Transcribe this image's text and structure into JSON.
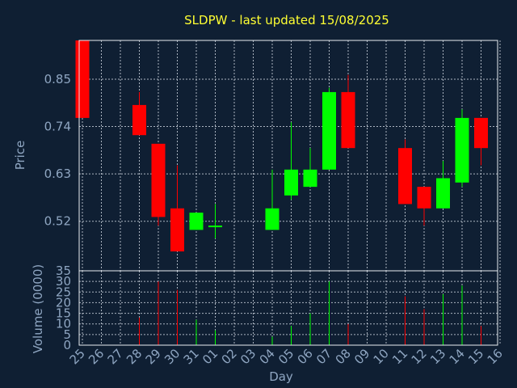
{
  "colors": {
    "background": "#0f1f33",
    "title": "#ffff33",
    "axis_text": "#8fa6c2",
    "up": "#00ff00",
    "down": "#ff0000",
    "grid": "#c8d0da"
  },
  "chart_data": [
    {
      "type": "candlestick",
      "title": "SLDPW - last updated 15/08/2025",
      "ylabel": "Price",
      "xlabel": "Day",
      "grid": true,
      "x_ticks": [
        "25",
        "26",
        "27",
        "28",
        "29",
        "30",
        "31",
        "01",
        "02",
        "03",
        "04",
        "05",
        "06",
        "07",
        "08",
        "09",
        "10",
        "11",
        "12",
        "13",
        "14",
        "15",
        "16"
      ],
      "y_ticks": [
        0.52,
        0.63,
        0.74,
        0.85
      ],
      "ylim": [
        0.405,
        0.94
      ],
      "xlim": [
        25,
        47
      ],
      "candles": [
        {
          "day": "25",
          "x": 25,
          "open": 0.94,
          "close": 0.76,
          "high": 0.94,
          "low": 0.76
        },
        {
          "day": "28",
          "x": 28,
          "open": 0.79,
          "close": 0.72,
          "high": 0.82,
          "low": 0.72
        },
        {
          "day": "29",
          "x": 29,
          "open": 0.7,
          "close": 0.53,
          "high": 0.7,
          "low": 0.51
        },
        {
          "day": "30",
          "x": 30,
          "open": 0.55,
          "close": 0.45,
          "high": 0.65,
          "low": 0.45
        },
        {
          "day": "31",
          "x": 31,
          "open": 0.5,
          "close": 0.54,
          "high": 0.54,
          "low": 0.5
        },
        {
          "day": "01",
          "x": 32,
          "open": 0.51,
          "close": 0.51,
          "high": 0.56,
          "low": 0.48
        },
        {
          "day": "04",
          "x": 35,
          "open": 0.5,
          "close": 0.55,
          "high": 0.64,
          "low": 0.5
        },
        {
          "day": "05",
          "x": 36,
          "open": 0.58,
          "close": 0.64,
          "high": 0.75,
          "low": 0.57
        },
        {
          "day": "06",
          "x": 37,
          "open": 0.6,
          "close": 0.64,
          "high": 0.69,
          "low": 0.6
        },
        {
          "day": "07",
          "x": 38,
          "open": 0.64,
          "close": 0.82,
          "high": 0.83,
          "low": 0.64
        },
        {
          "day": "08",
          "x": 39,
          "open": 0.82,
          "close": 0.69,
          "high": 0.86,
          "low": 0.69
        },
        {
          "day": "11",
          "x": 42,
          "open": 0.69,
          "close": 0.56,
          "high": 0.71,
          "low": 0.56
        },
        {
          "day": "12",
          "x": 43,
          "open": 0.6,
          "close": 0.55,
          "high": 0.6,
          "low": 0.51
        },
        {
          "day": "13",
          "x": 44,
          "open": 0.55,
          "close": 0.62,
          "high": 0.66,
          "low": 0.55
        },
        {
          "day": "14",
          "x": 45,
          "open": 0.61,
          "close": 0.76,
          "high": 0.78,
          "low": 0.6
        },
        {
          "day": "15",
          "x": 46,
          "open": 0.76,
          "close": 0.69,
          "high": 0.76,
          "low": 0.65
        }
      ]
    },
    {
      "type": "bar",
      "ylabel": "Volume (0000)",
      "y_ticks": [
        0,
        5,
        10,
        15,
        20,
        25,
        30,
        35
      ],
      "ylim": [
        0,
        35
      ],
      "volumes": [
        {
          "day": "25",
          "x": 25,
          "value": 0,
          "direction": "down"
        },
        {
          "day": "28",
          "x": 28,
          "value": 13,
          "direction": "down"
        },
        {
          "day": "29",
          "x": 29,
          "value": 30,
          "direction": "down"
        },
        {
          "day": "30",
          "x": 30,
          "value": 26,
          "direction": "down"
        },
        {
          "day": "31",
          "x": 31,
          "value": 12,
          "direction": "up"
        },
        {
          "day": "01",
          "x": 32,
          "value": 7,
          "direction": "up"
        },
        {
          "day": "04",
          "x": 35,
          "value": 4,
          "direction": "up"
        },
        {
          "day": "05",
          "x": 36,
          "value": 9,
          "direction": "up"
        },
        {
          "day": "06",
          "x": 37,
          "value": 15,
          "direction": "up"
        },
        {
          "day": "07",
          "x": 38,
          "value": 30,
          "direction": "up"
        },
        {
          "day": "08",
          "x": 39,
          "value": 10,
          "direction": "down"
        },
        {
          "day": "11",
          "x": 42,
          "value": 23,
          "direction": "down"
        },
        {
          "day": "12",
          "x": 43,
          "value": 17,
          "direction": "down"
        },
        {
          "day": "13",
          "x": 44,
          "value": 24,
          "direction": "up"
        },
        {
          "day": "14",
          "x": 45,
          "value": 28,
          "direction": "up"
        },
        {
          "day": "15",
          "x": 46,
          "value": 9,
          "direction": "down"
        }
      ]
    }
  ]
}
